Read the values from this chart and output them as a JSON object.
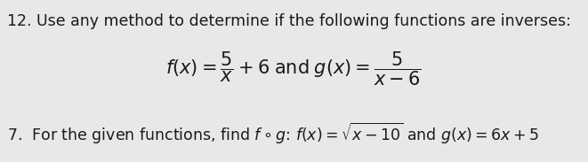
{
  "background_color": "#e8e8e8",
  "line1_text": "12. Use any method to determine if the following functions are inverses:",
  "line1_fontsize": 12.5,
  "formula_fontsize": 15,
  "line3_fontsize": 12.5,
  "text_color": "#1a1a1a",
  "figsize": [
    6.61,
    1.83
  ],
  "dpi": 100
}
